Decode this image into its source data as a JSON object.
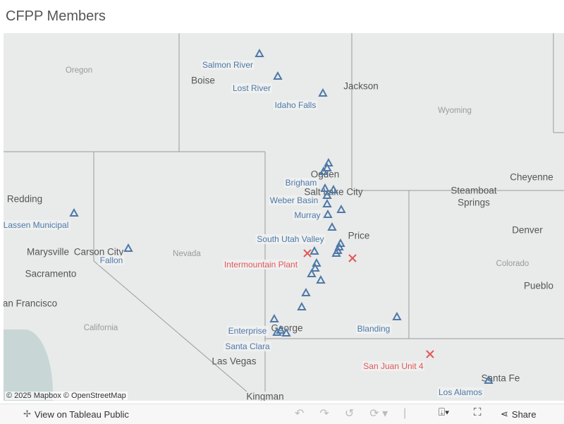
{
  "title": "CFPP Members",
  "colors": {
    "member": "#4e79a7",
    "plant": "#e15759"
  },
  "map": {
    "base_labels": [
      {
        "text": "Oregon",
        "k": "state"
      },
      {
        "text": "Boise",
        "k": "big"
      },
      {
        "text": "Jackson",
        "k": "big"
      },
      {
        "text": "Wyoming",
        "k": "state"
      },
      {
        "text": "Ogden",
        "k": "big"
      },
      {
        "text": "Salt Lake City",
        "k": "big"
      },
      {
        "text": "Cheyenne",
        "k": "big"
      },
      {
        "text": "Steamboat",
        "k": "big"
      },
      {
        "text": "Springs",
        "k": "big"
      },
      {
        "text": "Redding",
        "k": "big"
      },
      {
        "text": "Nevada",
        "k": "state"
      },
      {
        "text": "Price",
        "k": "big"
      },
      {
        "text": "Denver",
        "k": "big"
      },
      {
        "text": "Marysville",
        "k": "big"
      },
      {
        "text": "Carson City",
        "k": "big"
      },
      {
        "text": "Sacramento",
        "k": "big"
      },
      {
        "text": "Colorado",
        "k": "state"
      },
      {
        "text": "Pueblo",
        "k": "big"
      },
      {
        "text": "San Francisco",
        "k": "big"
      },
      {
        "text": "California",
        "k": "state"
      },
      {
        "text": "George",
        "k": "big"
      },
      {
        "text": "Las Vegas",
        "k": "big"
      },
      {
        "text": "Kingman",
        "k": "big"
      },
      {
        "text": "Santa Fe",
        "k": "big"
      }
    ],
    "member_labels": [
      "Salmon River",
      "Lost River",
      "Idaho Falls",
      "Brigham",
      "Weber Basin",
      "Murray",
      "Lassen Municipal",
      "Fallon",
      "South Utah Valley",
      "Enterprise",
      "Santa Clara",
      "Blanding",
      "Los Alamos"
    ],
    "plant_labels": [
      "Intermountain Plant",
      "San Juan Unit 4"
    ],
    "marker_shapes": {
      "member": "triangle",
      "plant": "x"
    },
    "attribution": "© 2025 Mapbox  © OpenStreetMap"
  },
  "toolbar": {
    "view_label": "View on Tableau Public",
    "share_label": "Share",
    "icons": [
      "tableau-logo-icon",
      "undo-icon",
      "redo-icon",
      "revert-icon",
      "refresh-icon",
      "download-icon",
      "fullscreen-icon",
      "share-icon"
    ]
  }
}
